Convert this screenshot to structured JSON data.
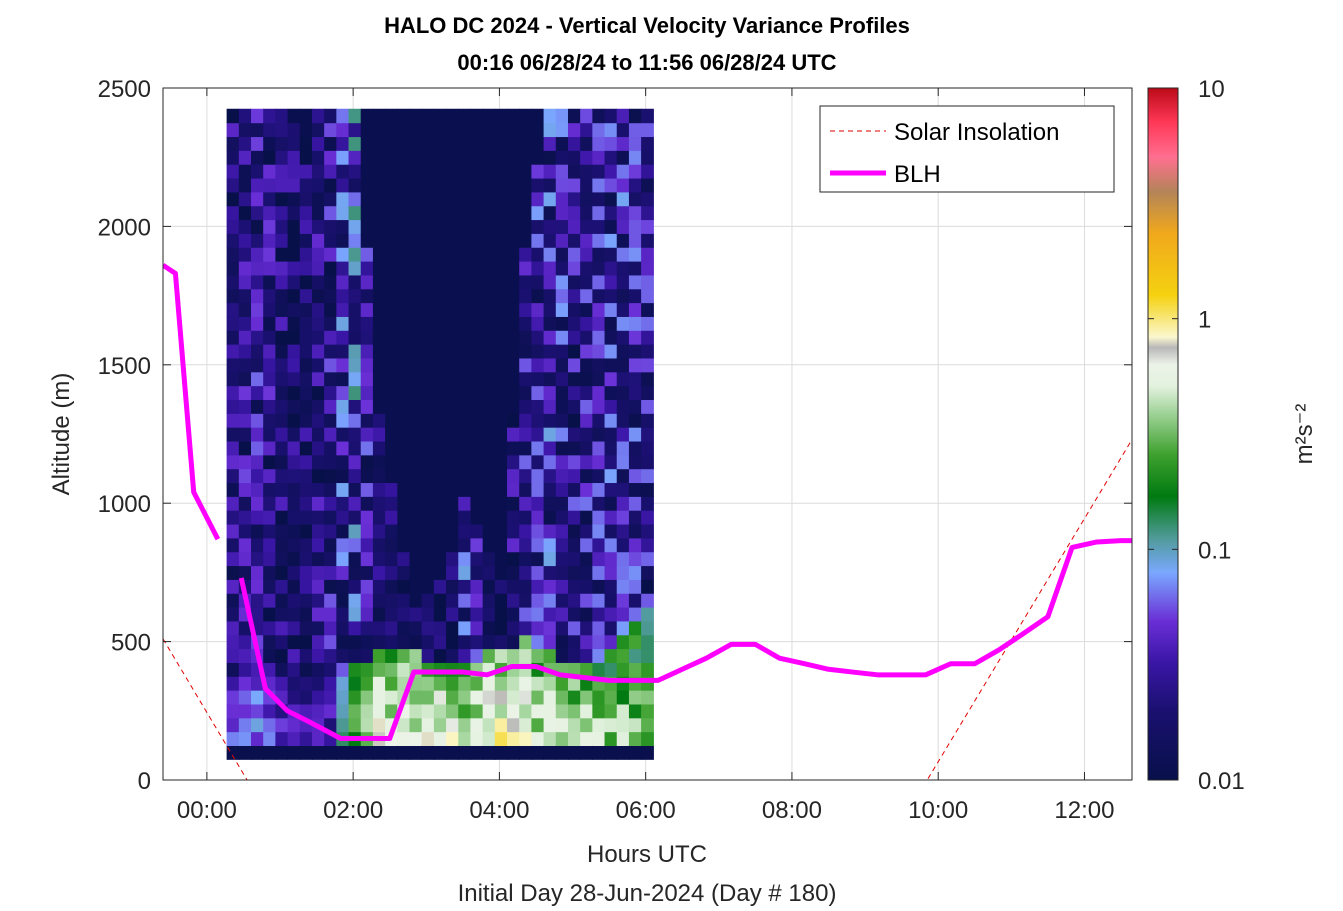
{
  "chart_data": {
    "type": "heatmap",
    "title": "HALO DC 2024 - Vertical Velocity Variance Profiles",
    "subtitle": "00:16 06/28/24 to 11:56 06/28/24  UTC",
    "xlabel": "Hours UTC",
    "xlabel2": "Initial Day 28-Jun-2024 (Day # 180)",
    "ylabel": "Altitude (m)",
    "colorbar_label": "m²s⁻²",
    "colorbar_scale": "log",
    "colorbar_range": [
      0.01,
      10
    ],
    "colorbar_ticks": [
      "10",
      "1",
      "0.1",
      "0.01"
    ],
    "xlim": [
      -0.6,
      12.65
    ],
    "ylim": [
      0,
      2500
    ],
    "x_ticks": [
      {
        "v": 0,
        "label": "00:00"
      },
      {
        "v": 2,
        "label": "02:00"
      },
      {
        "v": 4,
        "label": "04:00"
      },
      {
        "v": 6,
        "label": "06:00"
      },
      {
        "v": 8,
        "label": "08:00"
      },
      {
        "v": 10,
        "label": "10:00"
      },
      {
        "v": 12,
        "label": "12:00"
      }
    ],
    "y_ticks": [
      0,
      500,
      1000,
      1500,
      2000,
      2500
    ],
    "grid": true,
    "legend_position": "top-right",
    "heatmap": {
      "x_start": 0.27,
      "x_step": 0.1667,
      "y_start": 100,
      "y_step": 50,
      "n_cols": 35,
      "n_rows": 47,
      "background_value": 0.011,
      "columns": [
        {
          "i": 0,
          "noise": 0.022,
          "top": 2500,
          "pbl": 0.06,
          "pbl_top": 350
        },
        {
          "i": 2,
          "noise": 0.03,
          "top": 2500,
          "pbl": 0.07,
          "pbl_top": 560
        },
        {
          "i": 4,
          "noise": 0.02,
          "top": 2400,
          "pbl": 0.05,
          "pbl_top": 260
        },
        {
          "i": 6,
          "noise": 0.017,
          "top": 2300,
          "pbl": 0.035,
          "pbl_top": 400
        },
        {
          "i": 8,
          "noise": 0.03,
          "top": 2500,
          "pbl": 0.04,
          "pbl_top": 450
        },
        {
          "i": 10,
          "noise": 0.06,
          "top": 2500,
          "pbl": 0.3,
          "pbl_top": 420
        },
        {
          "i": 12,
          "noise": 0.018,
          "top": 1300,
          "pbl": 0.7,
          "pbl_top": 450
        },
        {
          "i": 15,
          "noise": 0.012,
          "top": 600,
          "pbl": 0.6,
          "pbl_top": 450
        },
        {
          "i": 18,
          "noise": 0.014,
          "top": 800,
          "pbl": 0.7,
          "pbl_top": 400
        },
        {
          "i": 19,
          "noise": 0.05,
          "top": 1000,
          "pbl": 0.5,
          "pbl_top": 420
        },
        {
          "i": 22,
          "noise": 0.016,
          "top": 700,
          "pbl": 0.8,
          "pbl_top": 480
        },
        {
          "i": 24,
          "noise": 0.03,
          "top": 1900,
          "pbl": 0.6,
          "pbl_top": 500
        },
        {
          "i": 26,
          "noise": 0.045,
          "top": 2500,
          "pbl": 0.5,
          "pbl_top": 450
        },
        {
          "i": 28,
          "noise": 0.03,
          "top": 2500,
          "pbl": 0.5,
          "pbl_top": 420
        },
        {
          "i": 30,
          "noise": 0.035,
          "top": 2500,
          "pbl": 0.4,
          "pbl_top": 420
        },
        {
          "i": 32,
          "noise": 0.04,
          "top": 2500,
          "pbl": 0.4,
          "pbl_top": 520
        },
        {
          "i": 34,
          "noise": 0.03,
          "top": 2500,
          "pbl": 0.3,
          "pbl_top": 600
        }
      ]
    },
    "series": [
      {
        "name": "Solar Insolation",
        "style": "dashed",
        "color": "#e00000",
        "x": [
          -0.6,
          0.55,
          9.85,
          12.65
        ],
        "y": [
          510,
          0,
          0,
          1230
        ]
      },
      {
        "name": "BLH",
        "style": "solid",
        "color": "#ff00ff",
        "segments": [
          {
            "x": [
              -0.6,
              -0.43,
              -0.18,
              0.15
            ],
            "y": [
              1860,
              1830,
              1040,
              870
            ]
          },
          {
            "x": [
              0.47,
              0.8,
              1.1,
              1.4,
              1.83,
              2.17,
              2.5,
              2.83,
              3.17,
              3.5,
              3.83,
              4.17,
              4.5,
              4.83,
              5.17,
              5.5,
              5.83,
              6.17,
              6.5,
              6.83,
              7.17,
              7.5,
              7.83,
              8.17,
              8.5,
              8.83,
              9.17,
              9.5,
              9.83,
              10.17,
              10.5,
              10.83,
              11.17,
              11.5,
              11.83,
              12.17,
              12.5,
              12.65
            ],
            "y": [
              730,
              330,
              250,
              210,
              150,
              150,
              150,
              390,
              390,
              390,
              380,
              410,
              410,
              380,
              370,
              360,
              360,
              360,
              400,
              440,
              490,
              490,
              440,
              420,
              400,
              390,
              380,
              380,
              380,
              420,
              420,
              470,
              530,
              590,
              840,
              860,
              865,
              865
            ]
          }
        ]
      }
    ]
  }
}
